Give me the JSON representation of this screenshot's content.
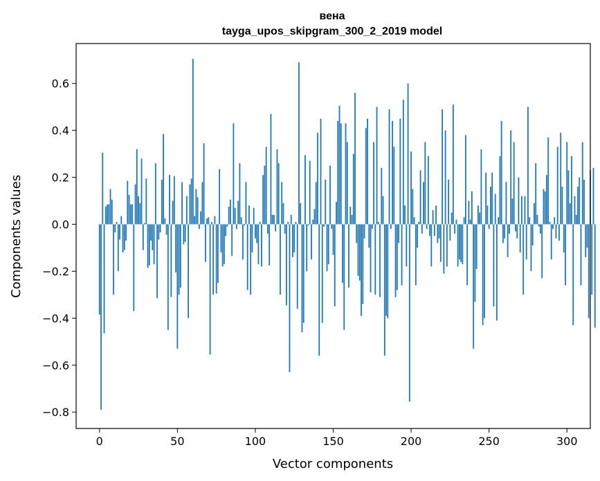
{
  "chart_data": {
    "type": "bar",
    "title": "вена",
    "subtitle": "tayga_upos_skipgram_300_2_2019 model",
    "xlabel": "Vector components",
    "ylabel": "Components values",
    "xlim": [
      -15,
      315
    ],
    "ylim": [
      -0.87,
      0.77
    ],
    "xticks": [
      0,
      50,
      100,
      150,
      200,
      250,
      300
    ],
    "yticks": [
      -0.8,
      -0.6,
      -0.4,
      -0.2,
      0.0,
      0.2,
      0.4,
      0.6
    ],
    "xtick_labels": [
      "0",
      "50",
      "100",
      "150",
      "200",
      "250",
      "300"
    ],
    "ytick_labels": [
      "−0.8",
      "−0.6",
      "−0.4",
      "−0.2",
      "0.0",
      "0.2",
      "0.4",
      "0.6"
    ],
    "bar_color": "#1f77b4",
    "grid": false,
    "values": [
      -0.385,
      -0.79,
      0.305,
      -0.465,
      0.075,
      0.085,
      0.085,
      0.15,
      0.105,
      -0.3,
      -0.035,
      0.01,
      -0.2,
      -0.065,
      0.035,
      -0.12,
      -0.11,
      -0.07,
      0.185,
      0.125,
      0.085,
      0.085,
      -0.37,
      0.17,
      0.32,
      0.12,
      0.09,
      0.28,
      -0.11,
      0.005,
      0.195,
      -0.185,
      -0.175,
      -0.07,
      -0.11,
      -0.17,
      0.26,
      -0.315,
      -0.065,
      -0.035,
      0.19,
      0.385,
      0.025,
      -0.045,
      -0.45,
      0.21,
      -0.31,
      0.1,
      0.205,
      -0.205,
      -0.53,
      -0.3,
      -0.27,
      0.18,
      -0.085,
      -0.075,
      0.12,
      -0.4,
      0.17,
      0.195,
      0.705,
      0.035,
      0.15,
      0.115,
      -0.02,
      0.055,
      0.18,
      0.345,
      -0.16,
      0.025,
      0.03,
      -0.555,
      0.01,
      -0.3,
      0.035,
      -0.295,
      -0.25,
      0.235,
      -0.12,
      -0.18,
      -0.17,
      -0.05,
      -0.01,
      0.075,
      0.105,
      -0.135,
      0.43,
      0.07,
      -0.02,
      0.1,
      0.26,
      0.03,
      -0.15,
      -0.005,
      0.18,
      -0.28,
      0.08,
      -0.3,
      -0.12,
      0.07,
      -0.06,
      -0.08,
      -0.17,
      0.01,
      -0.18,
      0.21,
      0.25,
      0.33,
      -0.04,
      -0.175,
      0.47,
      0.04,
      0.04,
      -0.03,
      0.32,
      0.26,
      -0.3,
      0.18,
      0.09,
      -0.04,
      -0.345,
      0.01,
      -0.63,
      0.04,
      -0.14,
      -0.12,
      0.01,
      -0.36,
      0.69,
      0.09,
      -0.46,
      -0.42,
      0.295,
      -0.2,
      -0.005,
      0.27,
      -0.15,
      0.02,
      0.065,
      0.18,
      0.39,
      -0.56,
      0.45,
      -0.42,
      -0.01,
      0.19,
      -0.2,
      -0.17,
      0.25,
      -0.02,
      -0.13,
      -0.35,
      0.095,
      0.44,
      0.505,
      0.43,
      -0.25,
      -0.45,
      0.43,
      0.35,
      -0.27,
      0.075,
      0.04,
      0.3,
      0.56,
      -0.08,
      -0.22,
      -0.24,
      -0.39,
      -0.34,
      -0.06,
      0.41,
      0.45,
      -0.1,
      -0.29,
      -0.02,
      0.35,
      -0.3,
      0.5,
      0.01,
      -0.31,
      0.24,
      0.12,
      -0.56,
      -0.39,
      -0.4,
      0.49,
      -0.02,
      0.44,
      0.33,
      -0.31,
      -0.28,
      -0.08,
      0.45,
      -0.26,
      0.53,
      0.08,
      -0.18,
      0.6,
      -0.755,
      0.31,
      0.15,
      0.03,
      -0.26,
      -0.1,
      0.01,
      0.23,
      -0.04,
      0.18,
      0.35,
      -0.02,
      0.29,
      -0.05,
      -0.18,
      0.06,
      -0.05,
      0.08,
      -0.08,
      -0.06,
      -0.16,
      0.49,
      -0.21,
      0.4,
      -0.18,
      0.19,
      -0.07,
      0.05,
      0.51,
      -0.04,
      0.02,
      -0.18,
      -0.15,
      -0.16,
      -0.17,
      0.03,
      0.38,
      -0.26,
      0.1,
      0.02,
      0.14,
      -0.53,
      -0.33,
      -0.19,
      0.08,
      0.05,
      0.32,
      -0.43,
      -0.4,
      0.22,
      0.08,
      -0.02,
      0.16,
      0.22,
      -0.35,
      0.13,
      -0.41,
      0.03,
      0.29,
      0.44,
      -0.08,
      -0.06,
      0.18,
      -0.14,
      -0.04,
      0.4,
      0.11,
      0.35,
      -0.03,
      -0.06,
      0.2,
      -0.12,
      0.12,
      -0.3,
      0.12,
      -0.15,
      0.5,
      0.03,
      -0.2,
      -0.09,
      0.09,
      0.26,
      0.04,
      -0.01,
      -0.04,
      -0.23,
      0.15,
      0.14,
      0.21,
      0.37,
      0.01,
      -0.15,
      -0.02,
      0.03,
      -0.06,
      0.33,
      -0.07,
      0.39,
      0.16,
      -0.12,
      -0.26,
      0.35,
      0.23,
      0.09,
      0.29,
      -0.43,
      0.12,
      0.04,
      0.16,
      0.2,
      -0.26,
      0.35,
      0.19,
      -0.14,
      -0.1,
      -0.4,
      0.23,
      -0.3,
      0.24,
      -0.44
    ]
  }
}
